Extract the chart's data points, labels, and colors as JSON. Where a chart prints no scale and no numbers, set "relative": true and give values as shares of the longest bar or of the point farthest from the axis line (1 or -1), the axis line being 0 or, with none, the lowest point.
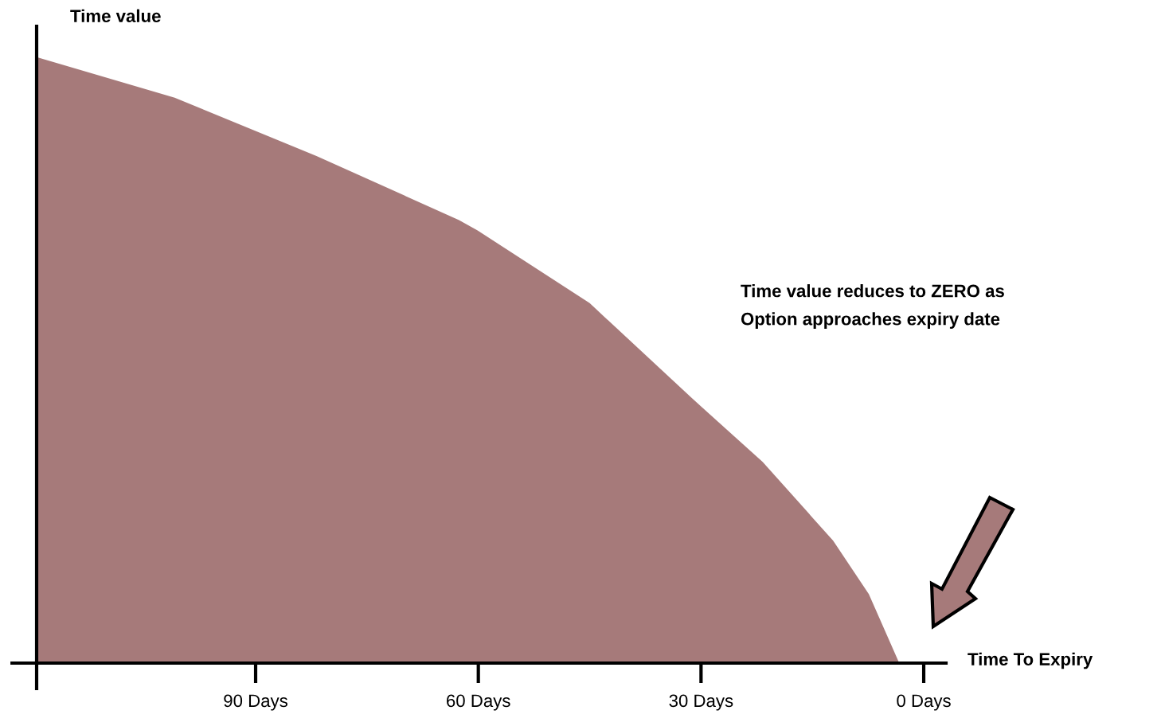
{
  "chart_data": {
    "type": "area",
    "relative": true,
    "ylabel": "Time value",
    "xlabel": "Time To Expiry",
    "x": [
      119.5,
      100.9,
      81.8,
      62.6,
      60.1,
      45.0,
      31.3,
      21.7,
      12.2,
      7.4,
      3.3
    ],
    "series": [
      {
        "color": "#a67a7a",
        "values": [
          1,
          0.933,
          0.837,
          0.731,
          0.714,
          0.594,
          0.438,
          0.332,
          0.202,
          0.114,
          0
        ]
      }
    ],
    "xlim": [
      119.5,
      -3
    ],
    "xticks": [
      {
        "value": 90,
        "label": "90 Days"
      },
      {
        "value": 60,
        "label": "60 Days"
      },
      {
        "value": 30,
        "label": "30 Days"
      },
      {
        "value": 0,
        "label": "0 Days"
      }
    ],
    "tick_labels": "x",
    "grid": false,
    "legend": false,
    "annotations": [
      "Time value reduces to ZERO as\nOption approaches expiry date"
    ]
  }
}
